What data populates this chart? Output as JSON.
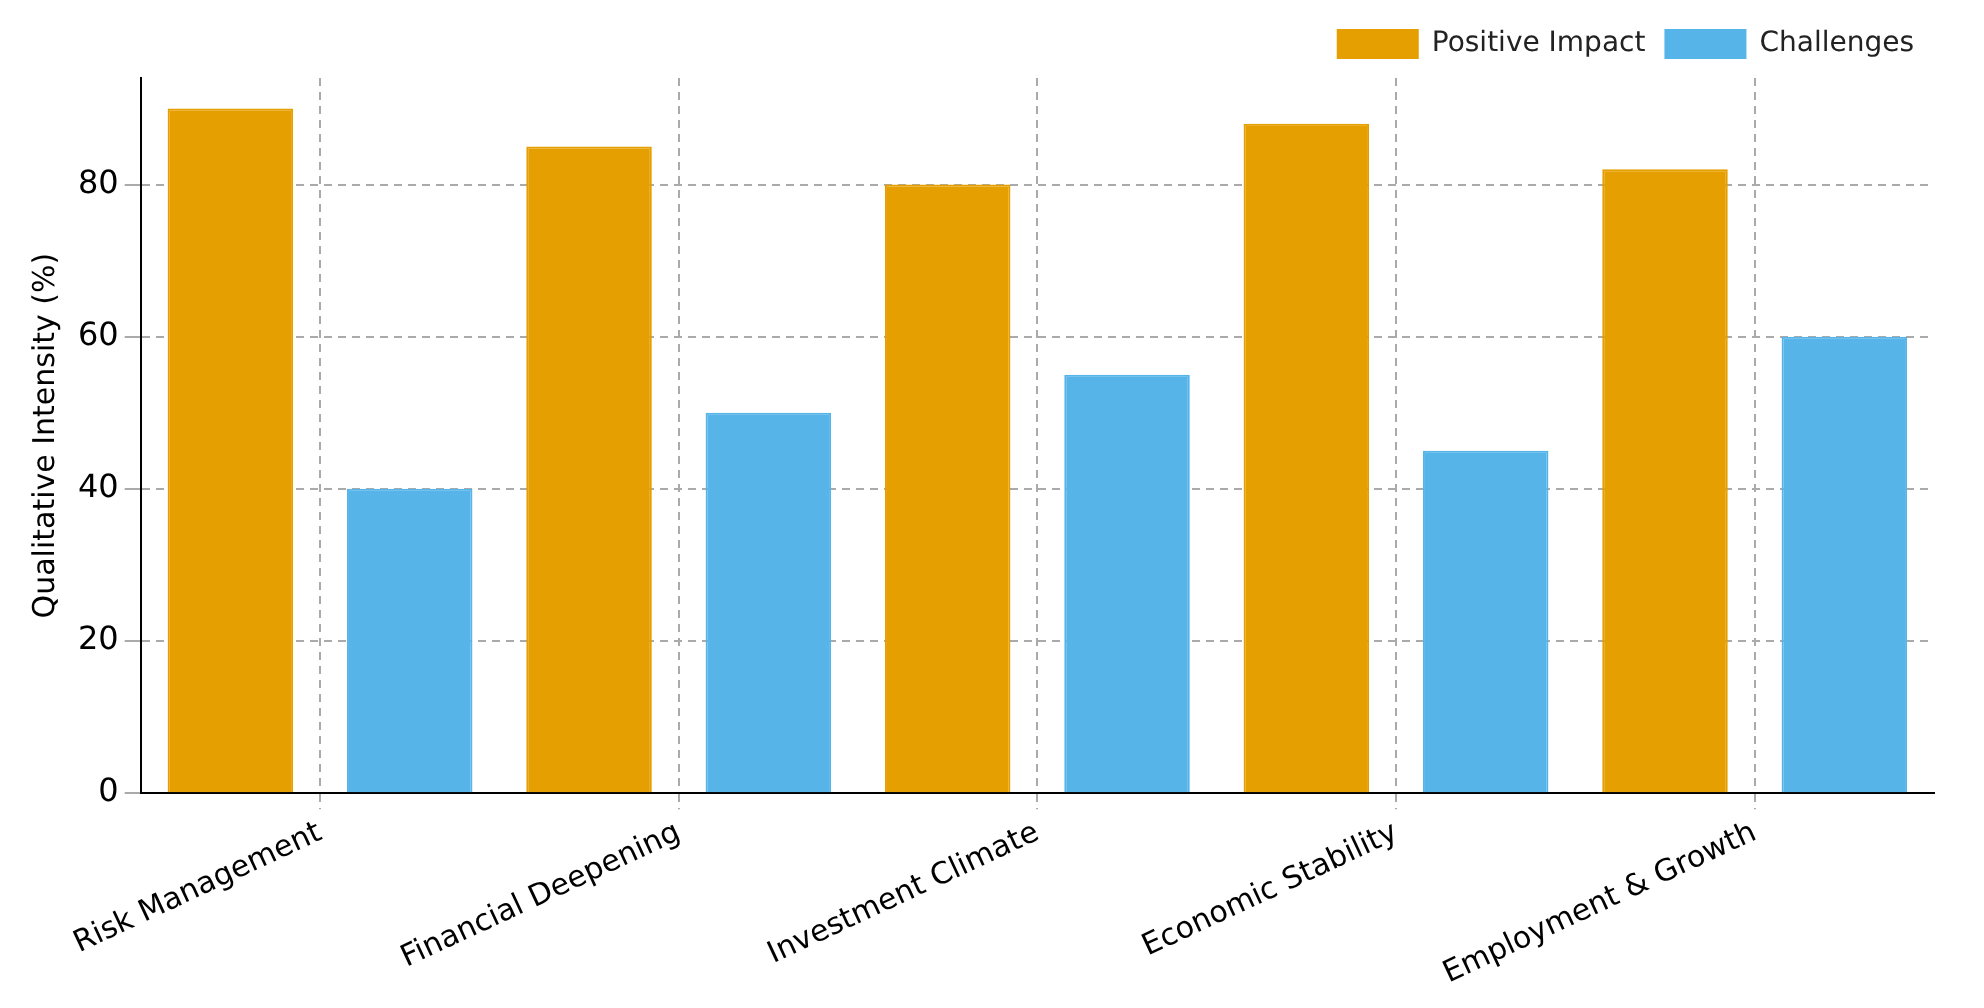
{
  "chart_data": {
    "type": "bar",
    "ylabel": "Qualitative Intensity (%)",
    "categories": [
      "Risk Management",
      "Financial Deepening",
      "Investment Climate",
      "Economic Stability",
      "Employment & Growth"
    ],
    "series": [
      {
        "name": "Positive Impact",
        "color": "#e69f00",
        "values": [
          90,
          85,
          80,
          88,
          82
        ]
      },
      {
        "name": "Challenges",
        "color": "#56b4e9",
        "values": [
          40,
          50,
          55,
          45,
          60
        ]
      }
    ],
    "ylim": [
      0,
      94
    ],
    "yticks": [
      0,
      20,
      40,
      60,
      80
    ],
    "grid": true,
    "legend": "top right"
  }
}
